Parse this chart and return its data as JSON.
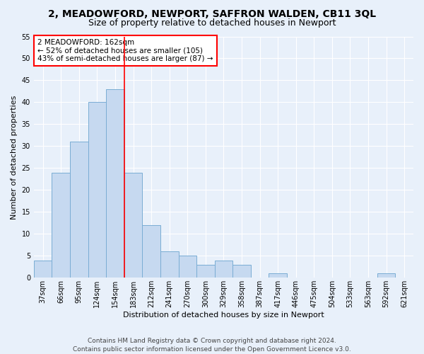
{
  "title": "2, MEADOWFORD, NEWPORT, SAFFRON WALDEN, CB11 3QL",
  "subtitle": "Size of property relative to detached houses in Newport",
  "xlabel": "Distribution of detached houses by size in Newport",
  "ylabel": "Number of detached properties",
  "categories": [
    "37sqm",
    "66sqm",
    "95sqm",
    "124sqm",
    "154sqm",
    "183sqm",
    "212sqm",
    "241sqm",
    "270sqm",
    "300sqm",
    "329sqm",
    "358sqm",
    "387sqm",
    "417sqm",
    "446sqm",
    "475sqm",
    "504sqm",
    "533sqm",
    "563sqm",
    "592sqm",
    "621sqm"
  ],
  "values": [
    4,
    24,
    31,
    40,
    43,
    24,
    12,
    6,
    5,
    3,
    4,
    3,
    0,
    1,
    0,
    0,
    0,
    0,
    0,
    1,
    0
  ],
  "bar_color": "#c6d9f0",
  "bar_edge_color": "#7aadd4",
  "vline_x_index": 4,
  "vline_color": "red",
  "ylim": [
    0,
    55
  ],
  "yticks": [
    0,
    5,
    10,
    15,
    20,
    25,
    30,
    35,
    40,
    45,
    50,
    55
  ],
  "annotation_text": "2 MEADOWFORD: 162sqm\n← 52% of detached houses are smaller (105)\n43% of semi-detached houses are larger (87) →",
  "annotation_box_color": "white",
  "annotation_box_edge_color": "red",
  "footer_line1": "Contains HM Land Registry data © Crown copyright and database right 2024.",
  "footer_line2": "Contains public sector information licensed under the Open Government Licence v3.0.",
  "background_color": "#e8f0fa",
  "grid_color": "white",
  "title_fontsize": 10,
  "subtitle_fontsize": 9,
  "axis_label_fontsize": 8,
  "tick_fontsize": 7,
  "annotation_fontsize": 7.5,
  "footer_fontsize": 6.5
}
